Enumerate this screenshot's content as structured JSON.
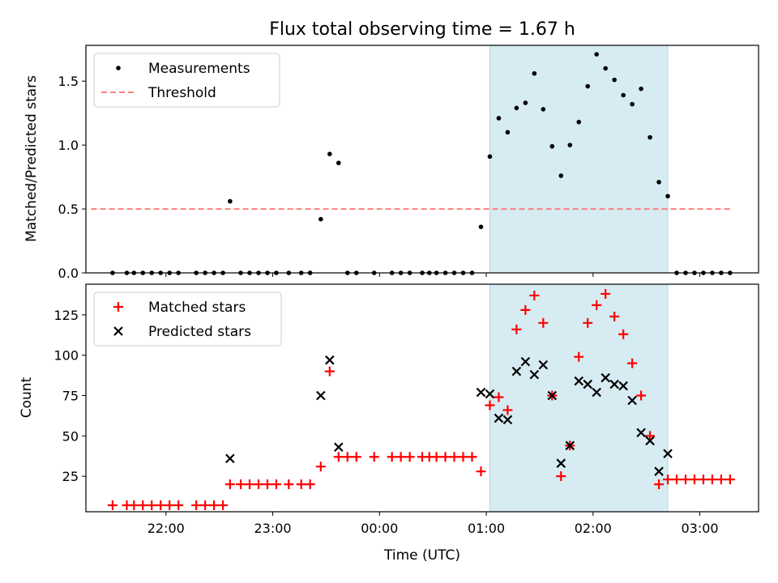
{
  "chart_data": [
    {
      "type": "scatter",
      "title": "Flux total observing time = 1.67 h",
      "xlabel": "",
      "ylabel": "Matched/Predicted stars",
      "xlim": [
        "21:15",
        "03:33"
      ],
      "ylim": [
        0,
        1.78
      ],
      "yticks": [
        "0.0",
        "0.5",
        "1.0",
        "1.5"
      ],
      "shaded_span": [
        "01:02",
        "02:42"
      ],
      "legend_location": "upper-left",
      "series": [
        {
          "name": "Measurements",
          "marker": "dot",
          "color": "#000000",
          "points": [
            [
              "21:30",
              0
            ],
            [
              "21:38",
              0
            ],
            [
              "21:42",
              0
            ],
            [
              "21:47",
              0
            ],
            [
              "21:52",
              0
            ],
            [
              "21:57",
              0
            ],
            [
              "22:02",
              0
            ],
            [
              "22:07",
              0
            ],
            [
              "22:17",
              0
            ],
            [
              "22:22",
              0
            ],
            [
              "22:27",
              0
            ],
            [
              "22:32",
              0
            ],
            [
              "22:36",
              0.56
            ],
            [
              "22:42",
              0
            ],
            [
              "22:47",
              0
            ],
            [
              "22:52",
              0
            ],
            [
              "22:57",
              0
            ],
            [
              "23:02",
              0
            ],
            [
              "23:09",
              0
            ],
            [
              "23:16",
              0
            ],
            [
              "23:21",
              0
            ],
            [
              "23:27",
              0.42
            ],
            [
              "23:32",
              0.93
            ],
            [
              "23:37",
              0.86
            ],
            [
              "23:42",
              0
            ],
            [
              "23:47",
              0
            ],
            [
              "23:57",
              0
            ],
            [
              "24:07",
              0
            ],
            [
              "24:12",
              0
            ],
            [
              "24:17",
              0
            ],
            [
              "24:24",
              0
            ],
            [
              "24:28",
              0
            ],
            [
              "24:32",
              0
            ],
            [
              "24:37",
              0
            ],
            [
              "24:42",
              0
            ],
            [
              "24:47",
              0
            ],
            [
              "24:52",
              0
            ],
            [
              "24:57",
              0.36
            ],
            [
              "25:02",
              0.91
            ],
            [
              "25:07",
              1.21
            ],
            [
              "25:12",
              1.1
            ],
            [
              "25:17",
              1.29
            ],
            [
              "25:22",
              1.33
            ],
            [
              "25:27",
              1.56
            ],
            [
              "25:32",
              1.28
            ],
            [
              "25:37",
              0.99
            ],
            [
              "25:42",
              0.76
            ],
            [
              "25:47",
              1.0
            ],
            [
              "25:52",
              1.18
            ],
            [
              "25:57",
              1.46
            ],
            [
              "26:02",
              1.71
            ],
            [
              "26:07",
              1.6
            ],
            [
              "26:12",
              1.51
            ],
            [
              "26:17",
              1.39
            ],
            [
              "26:22",
              1.32
            ],
            [
              "26:27",
              1.44
            ],
            [
              "26:32",
              1.06
            ],
            [
              "26:37",
              0.71
            ],
            [
              "26:42",
              0.6
            ],
            [
              "26:47",
              0
            ],
            [
              "26:52",
              0
            ],
            [
              "26:57",
              0
            ],
            [
              "27:02",
              0
            ],
            [
              "27:07",
              0
            ],
            [
              "27:12",
              0
            ],
            [
              "27:17",
              0
            ]
          ]
        },
        {
          "name": "Threshold",
          "marker": "dashed-line",
          "color": "#ff7f7f",
          "points": [
            [
              "21:18",
              0.5
            ],
            [
              "27:18",
              0.5
            ]
          ]
        }
      ]
    },
    {
      "type": "scatter",
      "title": "",
      "xlabel": "Time (UTC)",
      "ylabel": "Count",
      "xlim": [
        "21:15",
        "03:33"
      ],
      "ylim": [
        3,
        144
      ],
      "yticks": [
        "25",
        "50",
        "75",
        "100",
        "125"
      ],
      "xticks": [
        "22:00",
        "23:00",
        "00:00",
        "01:00",
        "02:00",
        "03:00"
      ],
      "shaded_span": [
        "01:02",
        "02:42"
      ],
      "legend_location": "upper-left",
      "series": [
        {
          "name": "Matched stars",
          "marker": "plus",
          "color": "#ff0000",
          "points": [
            [
              "21:30",
              7
            ],
            [
              "21:38",
              7
            ],
            [
              "21:42",
              7
            ],
            [
              "21:47",
              7
            ],
            [
              "21:52",
              7
            ],
            [
              "21:57",
              7
            ],
            [
              "22:02",
              7
            ],
            [
              "22:07",
              7
            ],
            [
              "22:17",
              7
            ],
            [
              "22:22",
              7
            ],
            [
              "22:27",
              7
            ],
            [
              "22:32",
              7
            ],
            [
              "22:36",
              20
            ],
            [
              "22:42",
              20
            ],
            [
              "22:47",
              20
            ],
            [
              "22:52",
              20
            ],
            [
              "22:57",
              20
            ],
            [
              "23:02",
              20
            ],
            [
              "23:09",
              20
            ],
            [
              "23:16",
              20
            ],
            [
              "23:21",
              20
            ],
            [
              "23:27",
              31
            ],
            [
              "23:32",
              90
            ],
            [
              "23:37",
              37
            ],
            [
              "23:42",
              37
            ],
            [
              "23:47",
              37
            ],
            [
              "23:57",
              37
            ],
            [
              "24:07",
              37
            ],
            [
              "24:12",
              37
            ],
            [
              "24:17",
              37
            ],
            [
              "24:24",
              37
            ],
            [
              "24:28",
              37
            ],
            [
              "24:32",
              37
            ],
            [
              "24:37",
              37
            ],
            [
              "24:42",
              37
            ],
            [
              "24:47",
              37
            ],
            [
              "24:52",
              37
            ],
            [
              "24:57",
              28
            ],
            [
              "25:02",
              69
            ],
            [
              "25:07",
              74
            ],
            [
              "25:12",
              66
            ],
            [
              "25:17",
              116
            ],
            [
              "25:22",
              128
            ],
            [
              "25:27",
              137
            ],
            [
              "25:32",
              120
            ],
            [
              "25:37",
              75
            ],
            [
              "25:42",
              25
            ],
            [
              "25:47",
              44
            ],
            [
              "25:52",
              99
            ],
            [
              "25:57",
              120
            ],
            [
              "26:02",
              131
            ],
            [
              "26:07",
              138
            ],
            [
              "26:12",
              124
            ],
            [
              "26:17",
              113
            ],
            [
              "26:22",
              95
            ],
            [
              "26:27",
              75
            ],
            [
              "26:32",
              50
            ],
            [
              "26:37",
              20
            ],
            [
              "26:42",
              23
            ],
            [
              "26:47",
              23
            ],
            [
              "26:52",
              23
            ],
            [
              "26:57",
              23
            ],
            [
              "27:02",
              23
            ],
            [
              "27:07",
              23
            ],
            [
              "27:12",
              23
            ],
            [
              "27:17",
              23
            ]
          ]
        },
        {
          "name": "Predicted stars",
          "marker": "x",
          "color": "#000000",
          "points": [
            [
              "22:36",
              36
            ],
            [
              "23:27",
              75
            ],
            [
              "23:32",
              97
            ],
            [
              "23:37",
              43
            ],
            [
              "24:57",
              77
            ],
            [
              "25:02",
              76
            ],
            [
              "25:07",
              61
            ],
            [
              "25:12",
              60
            ],
            [
              "25:17",
              90
            ],
            [
              "25:22",
              96
            ],
            [
              "25:27",
              88
            ],
            [
              "25:32",
              94
            ],
            [
              "25:37",
              75
            ],
            [
              "25:42",
              33
            ],
            [
              "25:47",
              44
            ],
            [
              "25:52",
              84
            ],
            [
              "25:57",
              82
            ],
            [
              "26:02",
              77
            ],
            [
              "26:07",
              86
            ],
            [
              "26:12",
              82
            ],
            [
              "26:17",
              81
            ],
            [
              "26:22",
              72
            ],
            [
              "26:27",
              52
            ],
            [
              "26:32",
              47
            ],
            [
              "26:37",
              28
            ],
            [
              "26:42",
              39
            ]
          ]
        }
      ]
    }
  ]
}
